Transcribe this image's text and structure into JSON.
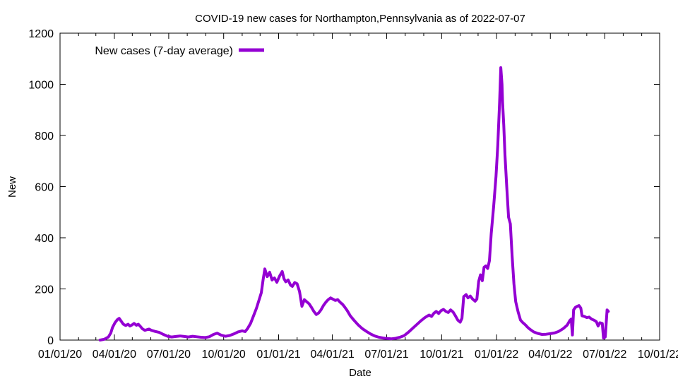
{
  "chart_data": {
    "type": "line",
    "title": "COVID-19 new cases for Northampton,Pennsylvania as of 2022-07-07",
    "xlabel": "Date",
    "ylabel": "New",
    "legend": "New cases (7-day average)",
    "legend_position": "top-left-inside",
    "grid": false,
    "background_color": "#ffffff",
    "axis_color": "#000000",
    "line_color": "#9400d3",
    "ylim": [
      0,
      1200
    ],
    "y_ticks": [
      "0",
      "200",
      "400",
      "600",
      "800",
      "1000",
      "1200"
    ],
    "x_range": [
      "2020-01-01",
      "2022-10-01"
    ],
    "x_tick_dates": [
      "2020-01-01",
      "2020-04-01",
      "2020-07-01",
      "2020-10-01",
      "2021-01-01",
      "2021-04-01",
      "2021-07-01",
      "2021-10-01",
      "2022-01-01",
      "2022-04-01",
      "2022-07-01",
      "2022-10-01"
    ],
    "x_tick_labels": [
      "01/01/20",
      "04/01/20",
      "07/01/20",
      "10/01/20",
      "01/01/21",
      "04/01/21",
      "07/01/21",
      "10/01/21",
      "01/01/22",
      "04/01/22",
      "07/01/22",
      "10/01/22"
    ],
    "series": [
      {
        "name": "New cases (7-day average)",
        "points": [
          [
            "2020-03-08",
            0
          ],
          [
            "2020-03-15",
            3
          ],
          [
            "2020-03-22",
            12
          ],
          [
            "2020-03-26",
            28
          ],
          [
            "2020-03-29",
            50
          ],
          [
            "2020-04-02",
            68
          ],
          [
            "2020-04-06",
            80
          ],
          [
            "2020-04-09",
            85
          ],
          [
            "2020-04-13",
            72
          ],
          [
            "2020-04-16",
            62
          ],
          [
            "2020-04-20",
            57
          ],
          [
            "2020-04-24",
            62
          ],
          [
            "2020-04-27",
            55
          ],
          [
            "2020-05-01",
            60
          ],
          [
            "2020-05-04",
            65
          ],
          [
            "2020-05-08",
            58
          ],
          [
            "2020-05-11",
            62
          ],
          [
            "2020-05-15",
            52
          ],
          [
            "2020-05-18",
            44
          ],
          [
            "2020-05-22",
            38
          ],
          [
            "2020-05-26",
            41
          ],
          [
            "2020-05-29",
            43
          ],
          [
            "2020-06-02",
            38
          ],
          [
            "2020-06-08",
            34
          ],
          [
            "2020-06-15",
            30
          ],
          [
            "2020-06-22",
            22
          ],
          [
            "2020-06-29",
            15
          ],
          [
            "2020-07-06",
            12
          ],
          [
            "2020-07-13",
            14
          ],
          [
            "2020-07-20",
            16
          ],
          [
            "2020-07-27",
            14
          ],
          [
            "2020-08-03",
            12
          ],
          [
            "2020-08-10",
            15
          ],
          [
            "2020-08-17",
            13
          ],
          [
            "2020-08-24",
            11
          ],
          [
            "2020-08-31",
            10
          ],
          [
            "2020-09-07",
            13
          ],
          [
            "2020-09-14",
            22
          ],
          [
            "2020-09-20",
            27
          ],
          [
            "2020-09-27",
            19
          ],
          [
            "2020-10-04",
            15
          ],
          [
            "2020-10-11",
            18
          ],
          [
            "2020-10-18",
            24
          ],
          [
            "2020-10-25",
            32
          ],
          [
            "2020-11-01",
            36
          ],
          [
            "2020-11-06",
            33
          ],
          [
            "2020-11-10",
            45
          ],
          [
            "2020-11-15",
            65
          ],
          [
            "2020-11-20",
            95
          ],
          [
            "2020-11-25",
            125
          ],
          [
            "2020-11-29",
            155
          ],
          [
            "2020-12-03",
            185
          ],
          [
            "2020-12-06",
            235
          ],
          [
            "2020-12-09",
            278
          ],
          [
            "2020-12-13",
            248
          ],
          [
            "2020-12-17",
            265
          ],
          [
            "2020-12-21",
            235
          ],
          [
            "2020-12-25",
            243
          ],
          [
            "2020-12-29",
            226
          ],
          [
            "2021-01-03",
            252
          ],
          [
            "2021-01-07",
            268
          ],
          [
            "2021-01-10",
            240
          ],
          [
            "2021-01-13",
            228
          ],
          [
            "2021-01-17",
            235
          ],
          [
            "2021-01-21",
            215
          ],
          [
            "2021-01-24",
            210
          ],
          [
            "2021-01-28",
            225
          ],
          [
            "2021-02-01",
            220
          ],
          [
            "2021-02-05",
            190
          ],
          [
            "2021-02-09",
            132
          ],
          [
            "2021-02-13",
            158
          ],
          [
            "2021-02-17",
            150
          ],
          [
            "2021-02-21",
            142
          ],
          [
            "2021-02-25",
            128
          ],
          [
            "2021-03-01",
            112
          ],
          [
            "2021-03-05",
            100
          ],
          [
            "2021-03-09",
            106
          ],
          [
            "2021-03-13",
            118
          ],
          [
            "2021-03-17",
            135
          ],
          [
            "2021-03-21",
            148
          ],
          [
            "2021-03-25",
            158
          ],
          [
            "2021-03-29",
            165
          ],
          [
            "2021-04-02",
            160
          ],
          [
            "2021-04-06",
            155
          ],
          [
            "2021-04-10",
            158
          ],
          [
            "2021-04-14",
            148
          ],
          [
            "2021-04-18",
            140
          ],
          [
            "2021-04-22",
            128
          ],
          [
            "2021-04-26",
            115
          ],
          [
            "2021-05-01",
            95
          ],
          [
            "2021-05-07",
            78
          ],
          [
            "2021-05-14",
            60
          ],
          [
            "2021-05-21",
            45
          ],
          [
            "2021-05-28",
            34
          ],
          [
            "2021-06-04",
            24
          ],
          [
            "2021-06-11",
            16
          ],
          [
            "2021-06-18",
            11
          ],
          [
            "2021-06-25",
            8
          ],
          [
            "2021-07-02",
            6
          ],
          [
            "2021-07-09",
            5
          ],
          [
            "2021-07-16",
            7
          ],
          [
            "2021-07-23",
            11
          ],
          [
            "2021-07-30",
            17
          ],
          [
            "2021-08-06",
            30
          ],
          [
            "2021-08-13",
            45
          ],
          [
            "2021-08-20",
            60
          ],
          [
            "2021-08-27",
            75
          ],
          [
            "2021-09-03",
            88
          ],
          [
            "2021-09-10",
            98
          ],
          [
            "2021-09-14",
            92
          ],
          [
            "2021-09-18",
            105
          ],
          [
            "2021-09-22",
            112
          ],
          [
            "2021-09-26",
            104
          ],
          [
            "2021-09-30",
            115
          ],
          [
            "2021-10-04",
            120
          ],
          [
            "2021-10-08",
            112
          ],
          [
            "2021-10-12",
            108
          ],
          [
            "2021-10-16",
            118
          ],
          [
            "2021-10-20",
            110
          ],
          [
            "2021-10-24",
            95
          ],
          [
            "2021-10-28",
            78
          ],
          [
            "2021-11-01",
            70
          ],
          [
            "2021-11-04",
            85
          ],
          [
            "2021-11-07",
            170
          ],
          [
            "2021-11-11",
            178
          ],
          [
            "2021-11-14",
            165
          ],
          [
            "2021-11-18",
            172
          ],
          [
            "2021-11-22",
            160
          ],
          [
            "2021-11-26",
            152
          ],
          [
            "2021-11-29",
            160
          ],
          [
            "2021-12-02",
            230
          ],
          [
            "2021-12-05",
            255
          ],
          [
            "2021-12-08",
            232
          ],
          [
            "2021-12-11",
            285
          ],
          [
            "2021-12-14",
            290
          ],
          [
            "2021-12-17",
            280
          ],
          [
            "2021-12-20",
            310
          ],
          [
            "2021-12-23",
            415
          ],
          [
            "2021-12-27",
            520
          ],
          [
            "2021-12-31",
            640
          ],
          [
            "2022-01-03",
            760
          ],
          [
            "2022-01-06",
            930
          ],
          [
            "2022-01-08",
            1065
          ],
          [
            "2022-01-10",
            1000
          ],
          [
            "2022-01-11",
            930
          ],
          [
            "2022-01-13",
            840
          ],
          [
            "2022-01-15",
            724
          ],
          [
            "2022-01-18",
            600
          ],
          [
            "2022-01-21",
            480
          ],
          [
            "2022-01-24",
            455
          ],
          [
            "2022-01-27",
            330
          ],
          [
            "2022-01-30",
            220
          ],
          [
            "2022-02-02",
            150
          ],
          [
            "2022-02-06",
            110
          ],
          [
            "2022-02-10",
            78
          ],
          [
            "2022-02-14",
            68
          ],
          [
            "2022-02-18",
            60
          ],
          [
            "2022-02-22",
            50
          ],
          [
            "2022-02-26",
            42
          ],
          [
            "2022-03-04",
            32
          ],
          [
            "2022-03-11",
            26
          ],
          [
            "2022-03-18",
            22
          ],
          [
            "2022-03-25",
            23
          ],
          [
            "2022-04-01",
            25
          ],
          [
            "2022-04-08",
            28
          ],
          [
            "2022-04-15",
            34
          ],
          [
            "2022-04-22",
            44
          ],
          [
            "2022-04-29",
            58
          ],
          [
            "2022-05-04",
            78
          ],
          [
            "2022-05-06",
            82
          ],
          [
            "2022-05-08",
            20
          ],
          [
            "2022-05-10",
            118
          ],
          [
            "2022-05-13",
            128
          ],
          [
            "2022-05-16",
            132
          ],
          [
            "2022-05-19",
            135
          ],
          [
            "2022-05-22",
            125
          ],
          [
            "2022-05-24",
            95
          ],
          [
            "2022-05-28",
            92
          ],
          [
            "2022-06-01",
            88
          ],
          [
            "2022-06-05",
            90
          ],
          [
            "2022-06-09",
            82
          ],
          [
            "2022-06-13",
            78
          ],
          [
            "2022-06-17",
            72
          ],
          [
            "2022-06-20",
            55
          ],
          [
            "2022-06-23",
            68
          ],
          [
            "2022-06-27",
            65
          ],
          [
            "2022-06-29",
            8
          ],
          [
            "2022-07-02",
            12
          ],
          [
            "2022-07-05",
            118
          ],
          [
            "2022-07-07",
            112
          ]
        ]
      }
    ]
  }
}
